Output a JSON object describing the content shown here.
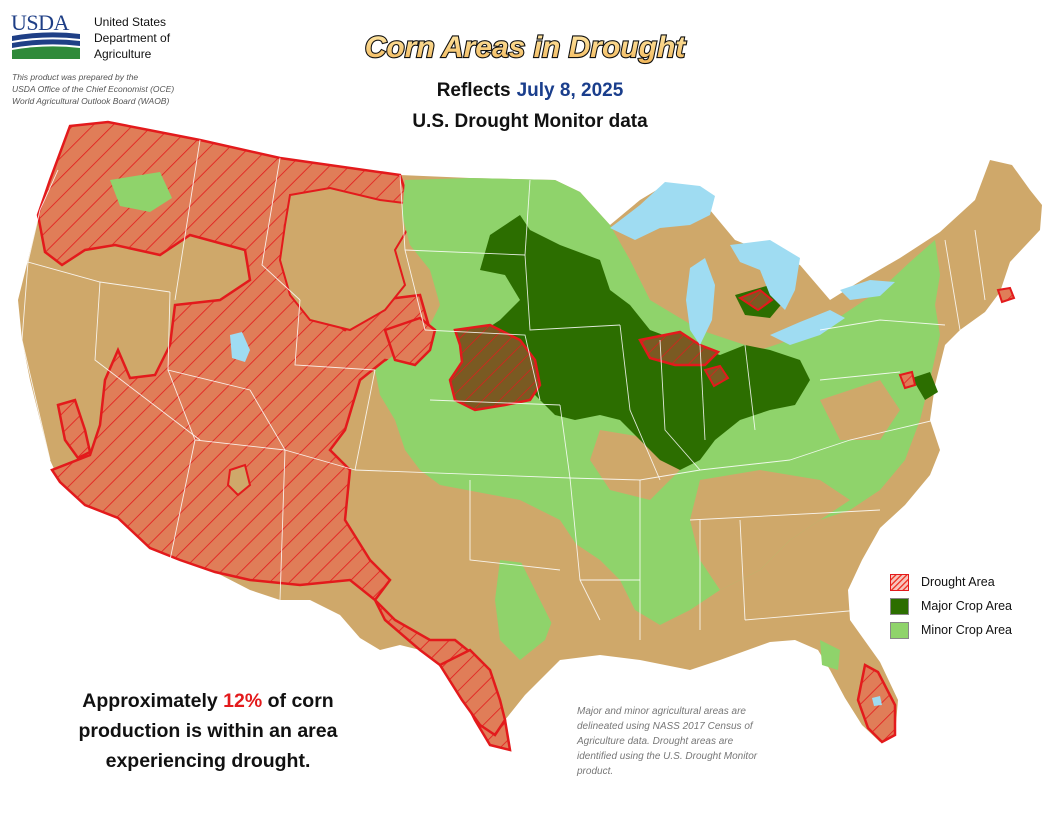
{
  "header": {
    "logo_text": "USDA",
    "agency_lines": [
      "United States",
      "Department of",
      "Agriculture"
    ],
    "prepared_lines": [
      "This product was prepared by the",
      "USDA Office of the Chief Economist (OCE)",
      "World Agricultural Outlook Board (WAOB)"
    ]
  },
  "title": "Corn Areas in Drought",
  "reflects": {
    "label": "Reflects",
    "date": "July 8, 2025"
  },
  "source_line": "U.S. Drought Monitor data",
  "legend": {
    "items": [
      {
        "label": "Drought Area",
        "color": "#e31a1c"
      },
      {
        "label": "Major Crop Area",
        "color": "#2c6e00"
      },
      {
        "label": "Minor Crop Area",
        "color": "#8fd36b"
      }
    ]
  },
  "summary": {
    "prefix": "Approximately ",
    "percent": "12%",
    "suffix_line1": " of corn",
    "line2": "production is within an area",
    "line3": "experiencing drought."
  },
  "method_note": [
    "Major and minor agricultural areas are",
    "delineated using NASS 2017 Census of",
    "Agriculture data.  Drought areas are",
    "identified using the U.S. Drought Monitor",
    "product."
  ],
  "colors": {
    "background_land": "#cfa86a",
    "water": "#9fdcf2",
    "drought_outline": "#e31a1c",
    "state_borders": "#ffffff"
  }
}
